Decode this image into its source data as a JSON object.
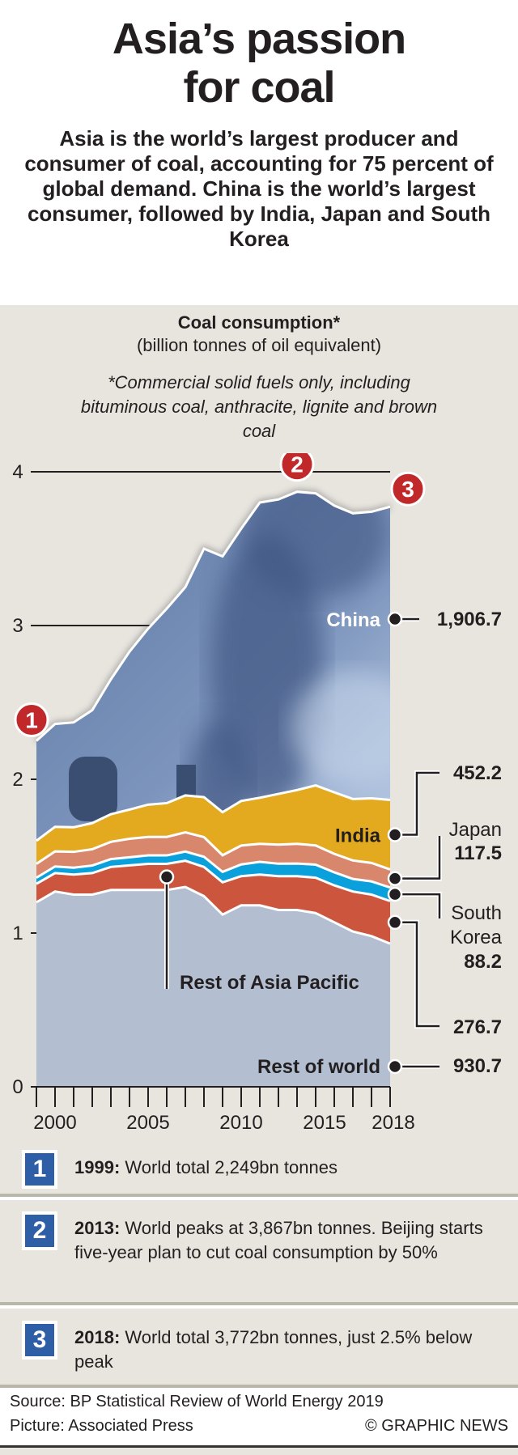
{
  "header": {
    "title_line1": "Asia’s passion",
    "title_line2": "for coal",
    "subtitle": "Asia is the world’s largest producer and consumer of coal, accounting for 75 percent of global demand. China is the world’s largest consumer, followed by India, Japan and South Korea"
  },
  "chart_data": {
    "type": "area",
    "stacked": true,
    "title": "Coal consumption*",
    "ylabel": "(billion tonnes of oil equivalent)",
    "footnote": "*Commercial solid fuels only, including bituminous coal, anthracite, lignite and brown coal",
    "x": [
      1999,
      2000,
      2001,
      2002,
      2003,
      2004,
      2005,
      2006,
      2007,
      2008,
      2009,
      2010,
      2011,
      2012,
      2013,
      2014,
      2015,
      2016,
      2017,
      2018
    ],
    "xticks": [
      "2000",
      "2005",
      "2010",
      "2015",
      "2018"
    ],
    "ylim": [
      0,
      4
    ],
    "yticks": [
      "0",
      "1",
      "2",
      "3",
      "4"
    ],
    "series": [
      {
        "name": "Rest of world",
        "end_value": "930.7",
        "color": "#b3bfd0",
        "values": [
          1.2,
          1.27,
          1.25,
          1.25,
          1.28,
          1.28,
          1.28,
          1.28,
          1.3,
          1.24,
          1.12,
          1.18,
          1.18,
          1.15,
          1.15,
          1.13,
          1.07,
          1.01,
          0.98,
          0.931
        ]
      },
      {
        "name": "Rest of Asia Pacific",
        "end_value": "276.7",
        "color": "#cc553d",
        "values": [
          0.12,
          0.12,
          0.13,
          0.14,
          0.15,
          0.16,
          0.17,
          0.17,
          0.17,
          0.19,
          0.21,
          0.19,
          0.2,
          0.22,
          0.22,
          0.23,
          0.24,
          0.26,
          0.27,
          0.277
        ]
      },
      {
        "name": "South Korea",
        "end_value": "88.2",
        "color": "#0aa0dc",
        "values": [
          0.04,
          0.043,
          0.045,
          0.049,
          0.051,
          0.053,
          0.055,
          0.055,
          0.06,
          0.066,
          0.068,
          0.076,
          0.083,
          0.081,
          0.082,
          0.085,
          0.085,
          0.082,
          0.086,
          0.088
        ]
      },
      {
        "name": "Japan",
        "end_value": "117.5",
        "color": "#d8876c",
        "values": [
          0.09,
          0.098,
          0.103,
          0.106,
          0.112,
          0.12,
          0.12,
          0.12,
          0.125,
          0.128,
          0.108,
          0.123,
          0.117,
          0.124,
          0.128,
          0.125,
          0.12,
          0.12,
          0.12,
          0.1175
        ]
      },
      {
        "name": "India",
        "end_value": "452.2",
        "color": "#e3aa1f",
        "values": [
          0.15,
          0.16,
          0.16,
          0.17,
          0.18,
          0.19,
          0.21,
          0.22,
          0.24,
          0.26,
          0.28,
          0.29,
          0.3,
          0.33,
          0.35,
          0.39,
          0.4,
          0.4,
          0.42,
          0.452
        ]
      },
      {
        "name": "China",
        "end_value": "1,906.7",
        "color": "#6d87b0",
        "values": [
          0.65,
          0.669,
          0.682,
          0.735,
          0.877,
          1.027,
          1.145,
          1.265,
          1.355,
          1.616,
          1.664,
          1.771,
          1.92,
          1.915,
          1.94,
          1.9,
          1.865,
          1.858,
          1.864,
          1.907
        ]
      }
    ],
    "markers": [
      {
        "label": "1",
        "year": 1999
      },
      {
        "label": "2",
        "year": 2013
      },
      {
        "label": "3",
        "year": 2018
      }
    ]
  },
  "notes": [
    {
      "num": "1",
      "year": "1999:",
      "text": " World total 2,249bn tonnes"
    },
    {
      "num": "2",
      "year": "2013:",
      "text": " World peaks at  3,867bn tonnes. Beijing starts five-year plan to cut coal consumption by 50%"
    },
    {
      "num": "3",
      "year": "2018:",
      "text": " World total 3,772bn tonnes, just 2.5% below peak"
    }
  ],
  "footer": {
    "source": "Source: BP Statistical Review of World Energy 2019",
    "picture": "Picture: Associated Press",
    "credit": "© GRAPHIC NEWS"
  },
  "colors": {
    "marker_red": "#c0282a",
    "note_blue": "#2e5ea6",
    "background": "#e8e5df"
  }
}
